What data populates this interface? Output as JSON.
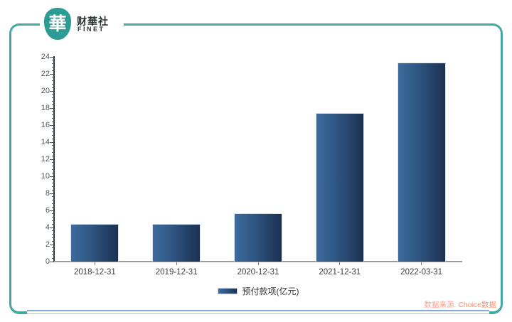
{
  "logo": {
    "symbol": "華",
    "name": "财華社",
    "sub": "FINET"
  },
  "source": {
    "label": "数据来源:",
    "value": "Choice数据"
  },
  "colors": {
    "frame_teal": "#44a7a1",
    "logo_teal": "#2b9c94",
    "bar_light": "#3d6b9c",
    "bar_mid": "#2e5480",
    "bar_dark": "#1b3152",
    "axis_line": "#313b49",
    "baseline": "#9a9a9a",
    "source_text": "#f28e6e"
  },
  "chart_data": {
    "type": "bar",
    "title": "",
    "categories": [
      "2018-12-31",
      "2019-12-31",
      "2020-12-31",
      "2021-12-31",
      "2022-03-31"
    ],
    "series": [
      {
        "name": "预付款项(亿元)",
        "values": [
          4.4,
          4.4,
          5.7,
          17.4,
          23.3
        ]
      }
    ],
    "xlabel": "",
    "ylabel": "",
    "ylim": [
      0,
      24
    ],
    "y_tick_step": 2,
    "y_ticks": [
      0,
      2,
      4,
      6,
      8,
      10,
      12,
      14,
      16,
      18,
      20,
      22,
      24
    ],
    "grid": false,
    "legend_position": "bottom"
  }
}
